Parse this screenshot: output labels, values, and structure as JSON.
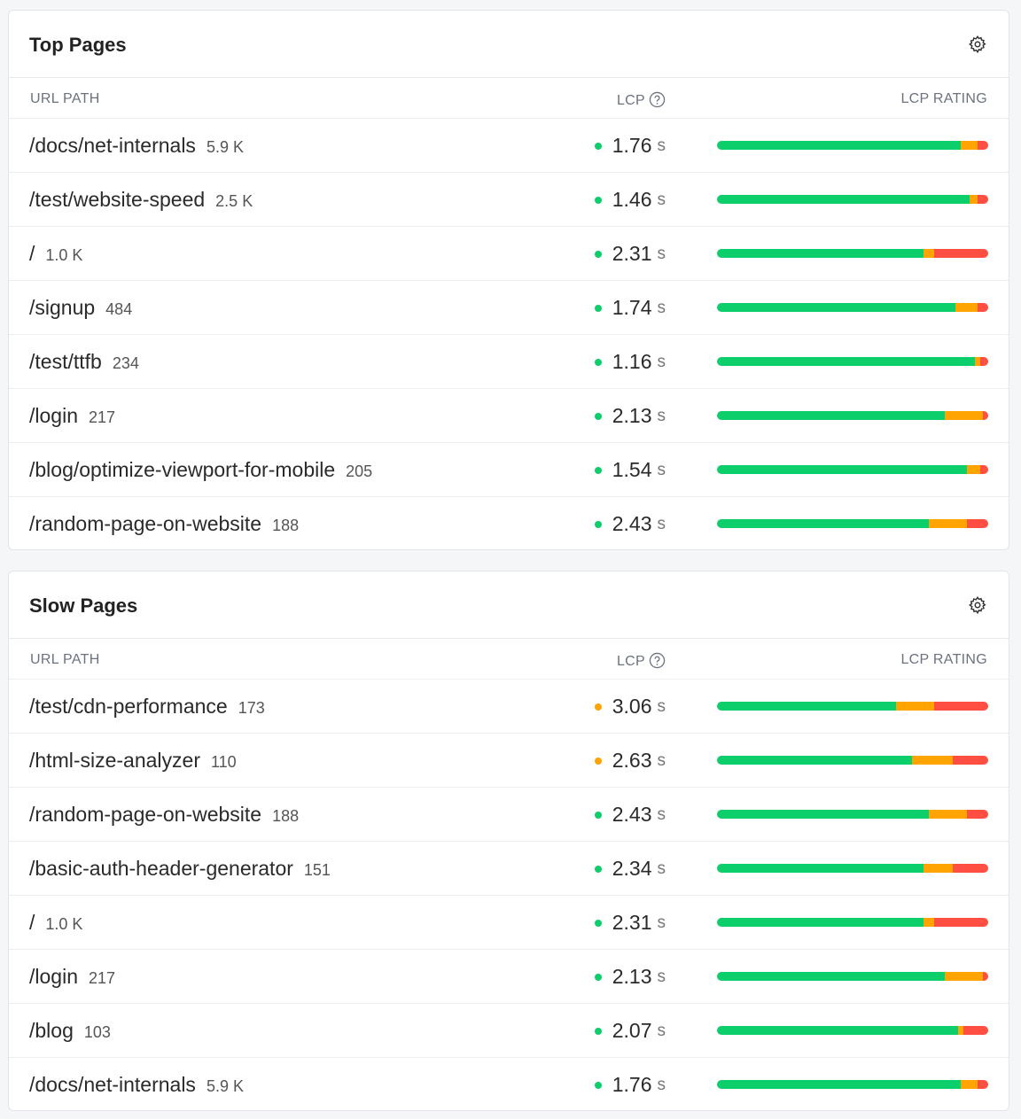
{
  "rating_colors": [
    "#0cce6b",
    "#ffa400",
    "#ff4e42"
  ],
  "cards": [
    {
      "title": "Top Pages",
      "columns": [
        "URL PATH",
        "LCP",
        "LCP RATING"
      ],
      "unit": "s",
      "rows": [
        {
          "path": "/docs/net-internals",
          "count": "5.9 K",
          "lcp": 1.76,
          "status_color": "#0cce6b",
          "rating": [
            90,
            6,
            4
          ]
        },
        {
          "path": "/test/website-speed",
          "count": "2.5 K",
          "lcp": 1.46,
          "status_color": "#0cce6b",
          "rating": [
            93,
            3,
            4
          ]
        },
        {
          "path": "/",
          "count": "1.0 K",
          "lcp": 2.31,
          "status_color": "#0cce6b",
          "rating": [
            76,
            4,
            20
          ]
        },
        {
          "path": "/signup",
          "count": "484",
          "lcp": 1.74,
          "status_color": "#0cce6b",
          "rating": [
            88,
            8,
            4
          ]
        },
        {
          "path": "/test/ttfb",
          "count": "234",
          "lcp": 1.16,
          "status_color": "#0cce6b",
          "rating": [
            95,
            2,
            3
          ]
        },
        {
          "path": "/login",
          "count": "217",
          "lcp": 2.13,
          "status_color": "#0cce6b",
          "rating": [
            84,
            14,
            2
          ]
        },
        {
          "path": "/blog/optimize-viewport-for-mobile",
          "count": "205",
          "lcp": 1.54,
          "status_color": "#0cce6b",
          "rating": [
            92,
            5,
            3
          ]
        },
        {
          "path": "/random-page-on-website",
          "count": "188",
          "lcp": 2.43,
          "status_color": "#0cce6b",
          "rating": [
            78,
            14,
            8
          ]
        }
      ]
    },
    {
      "title": "Slow Pages",
      "columns": [
        "URL PATH",
        "LCP",
        "LCP RATING"
      ],
      "unit": "s",
      "rows": [
        {
          "path": "/test/cdn-performance",
          "count": "173",
          "lcp": 3.06,
          "status_color": "#ffa400",
          "rating": [
            66,
            14,
            20
          ]
        },
        {
          "path": "/html-size-analyzer",
          "count": "110",
          "lcp": 2.63,
          "status_color": "#ffa400",
          "rating": [
            72,
            15,
            13
          ]
        },
        {
          "path": "/random-page-on-website",
          "count": "188",
          "lcp": 2.43,
          "status_color": "#0cce6b",
          "rating": [
            78,
            14,
            8
          ]
        },
        {
          "path": "/basic-auth-header-generator",
          "count": "151",
          "lcp": 2.34,
          "status_color": "#0cce6b",
          "rating": [
            76,
            11,
            13
          ]
        },
        {
          "path": "/",
          "count": "1.0 K",
          "lcp": 2.31,
          "status_color": "#0cce6b",
          "rating": [
            76,
            4,
            20
          ]
        },
        {
          "path": "/login",
          "count": "217",
          "lcp": 2.13,
          "status_color": "#0cce6b",
          "rating": [
            84,
            14,
            2
          ]
        },
        {
          "path": "/blog",
          "count": "103",
          "lcp": 2.07,
          "status_color": "#0cce6b",
          "rating": [
            89,
            2,
            9
          ]
        },
        {
          "path": "/docs/net-internals",
          "count": "5.9 K",
          "lcp": 1.76,
          "status_color": "#0cce6b",
          "rating": [
            90,
            6,
            4
          ]
        }
      ]
    }
  ]
}
